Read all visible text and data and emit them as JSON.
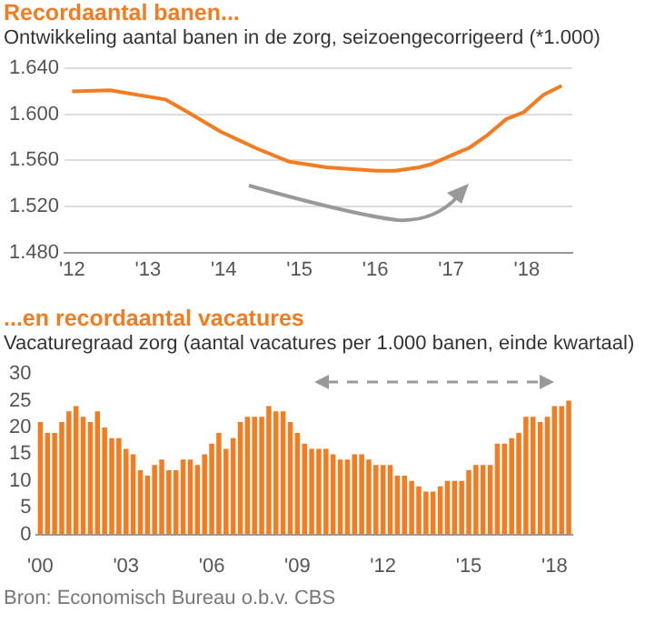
{
  "chart_data": [
    {
      "type": "line",
      "title": "Recordaantal banen...",
      "subtitle": "Ontwikkeling aantal banen in de zorg, seizoengecorrigeerd (*1.000)",
      "series": [
        {
          "color": "#f47c20",
          "x": [
            2012,
            2012.5,
            2013.23,
            2013.55,
            2013.96,
            2014.45,
            2014.86,
            2015.36,
            2016.01,
            2016.26,
            2016.58,
            2016.75,
            2016.99,
            2017.24,
            2017.48,
            2017.73,
            2017.96,
            2018.22,
            2018.46
          ],
          "values": [
            1620,
            1621,
            1613,
            1601,
            1585,
            1570,
            1559,
            1554,
            1551,
            1551,
            1554,
            1557,
            1564,
            1571,
            1582,
            1596,
            1602,
            1617,
            1625
          ]
        }
      ],
      "xlim": [
        2011.9,
        2018.6
      ],
      "xticks": [
        {
          "value": 2012,
          "label": "'12"
        },
        {
          "value": 2013,
          "label": "'13"
        },
        {
          "value": 2014,
          "label": "'14"
        },
        {
          "value": 2015,
          "label": "'15"
        },
        {
          "value": 2016,
          "label": "'16"
        },
        {
          "value": 2017,
          "label": "'17"
        },
        {
          "value": 2018,
          "label": "'18"
        }
      ],
      "ylim": [
        1480,
        1640
      ],
      "yticks": [
        {
          "value": 1480,
          "label": "1.480"
        },
        {
          "value": 1520,
          "label": "1.520"
        },
        {
          "value": 1560,
          "label": "1.560"
        },
        {
          "value": 1600,
          "label": "1.600"
        },
        {
          "value": 1640,
          "label": "1.640"
        }
      ],
      "grid": "y",
      "marker": "none",
      "line_style": "solid",
      "legend": false
    },
    {
      "type": "bar",
      "title": "...en recordaantal vacatures",
      "subtitle": "Vacaturegraad zorg (aantal vacatures per 1.000 banen, einde kwartaal)",
      "categories": [
        "'00",
        null,
        null,
        null,
        null,
        null,
        null,
        null,
        null,
        null,
        null,
        null,
        "'03",
        null,
        null,
        null,
        null,
        null,
        null,
        null,
        null,
        null,
        null,
        null,
        "'06",
        null,
        null,
        null,
        null,
        null,
        null,
        null,
        null,
        null,
        null,
        null,
        "'09",
        null,
        null,
        null,
        null,
        null,
        null,
        null,
        null,
        null,
        null,
        null,
        "'12",
        null,
        null,
        null,
        null,
        null,
        null,
        null,
        null,
        null,
        null,
        null,
        "'15",
        null,
        null,
        null,
        null,
        null,
        null,
        null,
        null,
        null,
        null,
        null,
        "'18",
        null,
        null
      ],
      "series": [
        {
          "color": "#f47c20",
          "values": [
            21,
            19,
            19,
            21,
            23,
            24,
            22,
            21,
            23,
            20,
            18,
            18,
            16,
            15,
            12,
            11,
            13,
            14,
            12,
            12,
            14,
            14,
            13,
            15,
            17,
            19,
            16,
            18,
            21,
            22,
            22,
            22,
            24,
            23,
            23,
            21,
            19,
            17,
            16,
            16,
            16,
            15,
            14,
            14,
            15,
            15,
            14,
            13,
            13,
            13,
            11,
            11,
            10,
            9,
            8,
            8,
            9,
            10,
            10,
            10,
            12,
            13,
            13,
            13,
            17,
            17,
            18,
            19,
            22,
            22,
            21,
            22,
            24,
            24,
            25
          ]
        }
      ],
      "ylim": [
        0,
        30
      ],
      "yticks": [
        0,
        5,
        10,
        15,
        20,
        25,
        30
      ],
      "grid": false,
      "legend": false,
      "annotations": [
        "Bron: Economisch Bureau o.b.v. CBS"
      ]
    }
  ]
}
